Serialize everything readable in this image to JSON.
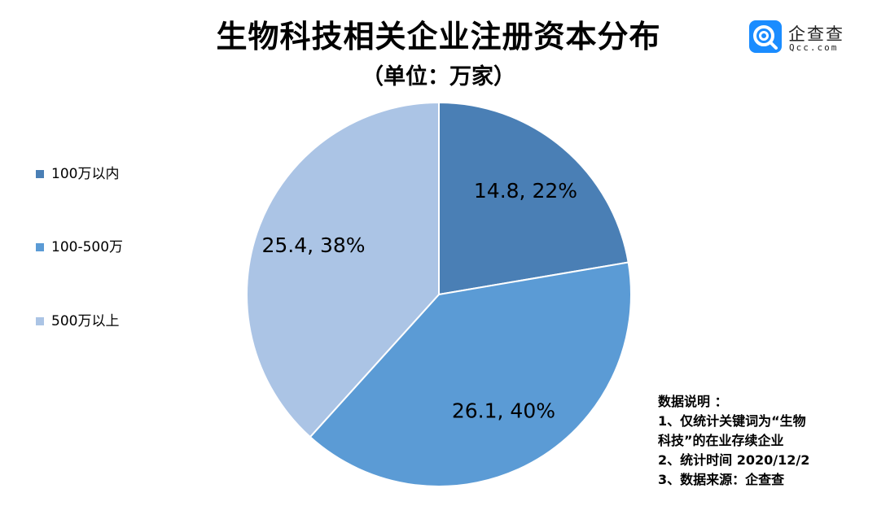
{
  "title": "生物科技相关企业注册资本分布",
  "subtitle": "（单位：万家）",
  "logo": {
    "name": "企查查",
    "domain": "Qcc.com"
  },
  "chart_data": {
    "type": "pie",
    "title": "生物科技相关企业注册资本分布",
    "unit": "万家",
    "legend_position": "left",
    "slices": [
      {
        "name": "100万以内",
        "value": 14.8,
        "percent": 22,
        "label": "14.8, 22%",
        "color": "#4a7fb5"
      },
      {
        "name": "100-500万",
        "value": 26.1,
        "percent": 40,
        "label": "26.1, 40%",
        "color": "#5b9bd5"
      },
      {
        "name": "500万以上",
        "value": 25.4,
        "percent": 38,
        "label": "25.4, 38%",
        "color": "#abc4e5"
      }
    ]
  },
  "notes": [
    "数据说明 ：",
    "1、仅统计关键词为“生物",
    "科技”的在业存续企业",
    "2、统计时间 2020/12/2",
    "3、数据来源：企查查"
  ]
}
